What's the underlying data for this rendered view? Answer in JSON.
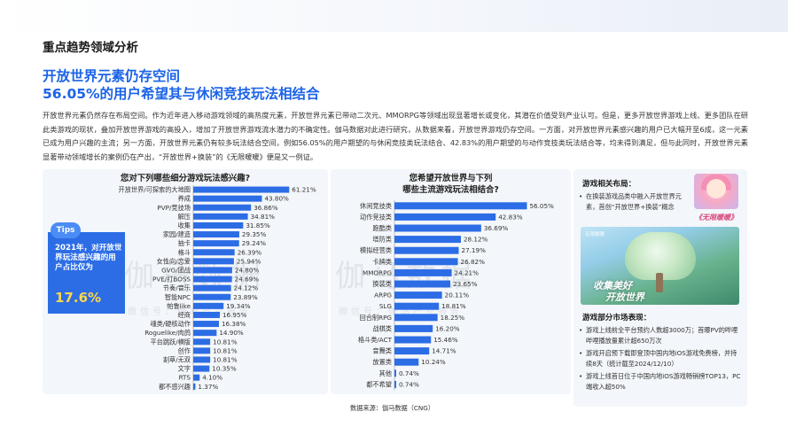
{
  "section_title": "重点趋势领域分析",
  "headline": {
    "line1": "开放世界元素仍存空间",
    "line2": "56.05%的用户希望其与休闲竞技玩法相结合"
  },
  "body_text": "开放世界元素仍然存在布局空间。作为近年进入移动游戏领域的高热度元素，开放世界元素已带动二次元、MMORPG等领域出现显著增长或变化，其潜在价值受到产业认可。但是，更多开放世界游戏上线、更多团队在研此类游戏的现状，叠加开放世界游戏的高投入，增加了开放世界游戏流水潜力的不确定性。伽马数据对此进行研究，从数据来看，开放世界游戏仍存空间。一方面，对开放世界元素感兴趣的用户已大幅开至6成，这一元素已成为用户兴趣的主流；另一方面，开放世界元素仍有较多玩法结合空间，例如56.05%的用户期望的与休闲竞技类玩法结合、42.83%的用户期望的与动作竞技类玩法结合等，均未得到满足，但与此同时，开放世界元素显著带动领域增长的案例仍在产出，“开放世界+换装”的《无限暖暖》便是又一例证。",
  "tips": {
    "tag": "Tips",
    "text": "2021年，对开放世界玩法感兴趣的用户占比仅为",
    "value": "17.6%"
  },
  "watermark": {
    "main": "伽马数据",
    "sub": "微信号：伽马产业报告"
  },
  "colors": {
    "accent": "#1b63e8",
    "bar": "#2c6de6",
    "panel": "#f3f6fa",
    "tips_value": "#ffd84a"
  },
  "chart_data": [
    {
      "type": "bar",
      "orientation": "horizontal",
      "title": "您对下列哪些细分游戏玩法感兴趣?",
      "categories": [
        "开放世界/可探索的大地图",
        "养成",
        "PVP/竞技场",
        "解压",
        "收集",
        "家园/建造",
        "抽卡",
        "格斗",
        "女性向/恋爱",
        "GVG/团战",
        "PVE/打BOSS",
        "节奏/音乐",
        "智能NPC",
        "帕鲁like",
        "经商",
        "魂类/硬核动作",
        "Roguelike/肉鸽",
        "平台跳跃/横版",
        "创作",
        "割草/无双",
        "文字",
        "RTS",
        "都不感兴趣"
      ],
      "values": [
        61.21,
        43.8,
        36.86,
        34.81,
        31.85,
        29.35,
        29.24,
        26.39,
        25.94,
        24.8,
        24.69,
        24.12,
        23.89,
        19.34,
        16.95,
        16.38,
        14.9,
        10.81,
        10.81,
        10.81,
        10.35,
        4.1,
        1.37
      ],
      "value_labels": [
        "61.21%",
        "43.80%",
        "36.86%",
        "34.81%",
        "31.85%",
        "29.35%",
        "29.24%",
        "26.39%",
        "25.94%",
        "24.80%",
        "24.69%",
        "24.12%",
        "23.89%",
        "19.34%",
        "16.95%",
        "16.38%",
        "14.90%",
        "10.81%",
        "10.81%",
        "10.81%",
        "10.35%",
        "4.10%",
        "1.37%"
      ],
      "xlim": [
        0,
        65
      ]
    },
    {
      "type": "bar",
      "orientation": "horizontal",
      "title_lines": [
        "您希望开放世界与下列",
        "哪些主流游戏玩法相结合?"
      ],
      "categories": [
        "休闲竞技类",
        "动作竞技类",
        "跑酷类",
        "塔防类",
        "模拟经营类",
        "卡牌类",
        "MMORPG",
        "换装类",
        "ARPG",
        "SLG",
        "回合制RPG",
        "战棋类",
        "格斗类/ACT",
        "音舞类",
        "放置类",
        "其他",
        "都不希望"
      ],
      "values": [
        56.05,
        42.83,
        36.69,
        28.12,
        27.19,
        26.82,
        24.21,
        23.65,
        20.11,
        18.81,
        18.25,
        16.2,
        15.46,
        14.71,
        10.24,
        0.74,
        0.74
      ],
      "value_labels": [
        "56.05%",
        "42.83%",
        "36.69%",
        "28.12%",
        "27.19%",
        "26.82%",
        "24.21%",
        "23.65%",
        "20.11%",
        "18.81%",
        "18.25%",
        "16.20%",
        "15.46%",
        "14.71%",
        "10.24%",
        "0.74%",
        "0.74%"
      ],
      "xlim": [
        0,
        60
      ]
    }
  ],
  "side_panel": {
    "layout_title": "游戏相关布局：",
    "layout_items": [
      "在换装游戏品类中融入开放世界元素，首创“开放世界+换装”概念"
    ],
    "game_logo": "《无限暖暖》",
    "banner_small": "无限暖暖",
    "banner_text_1": "收集美好",
    "banner_text_2": "开放世界",
    "market_title": "游戏部分市场表现：",
    "market_items": [
      "游戏上线前全平台预约人数超3000万；首曝PV的哔哩哔哩播放量累计超650万次",
      "游戏开启预下载即登顶中国内地iOS游戏免费榜，并持续8天（统计截至2024/12/10）",
      "游戏上线首日位于中国内地iOS游戏畅销榜TOP13，PC端收入超50%"
    ]
  },
  "source": "数据来源：伽马数据（CNG）"
}
